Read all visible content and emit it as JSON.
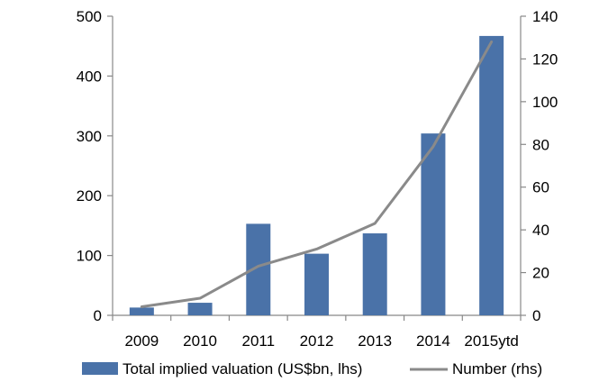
{
  "chart_data": {
    "type": "bar",
    "title": "",
    "xlabel": "",
    "ylabel": "",
    "categories": [
      "2009",
      "2010",
      "2011",
      "2012",
      "2013",
      "2014",
      "2015ytd"
    ],
    "series": [
      {
        "name": "Total implied valuation (US$bn, lhs)",
        "type": "bar",
        "axis": "left",
        "color": "#4a72a8",
        "values": [
          13,
          21,
          153,
          103,
          137,
          304,
          467
        ]
      },
      {
        "name": "Number (rhs)",
        "type": "line",
        "axis": "right",
        "color": "#8a8a8a",
        "values": [
          4,
          8,
          23,
          31,
          43,
          79,
          128
        ]
      }
    ],
    "ylim": [
      0,
      500
    ],
    "y2lim": [
      0,
      140
    ],
    "yticks": [
      "0",
      "100",
      "200",
      "300",
      "400",
      "500"
    ],
    "y2ticks": [
      "0",
      "20",
      "40",
      "60",
      "80",
      "100",
      "120",
      "140"
    ],
    "grid": false,
    "legend_position": "bottom"
  }
}
